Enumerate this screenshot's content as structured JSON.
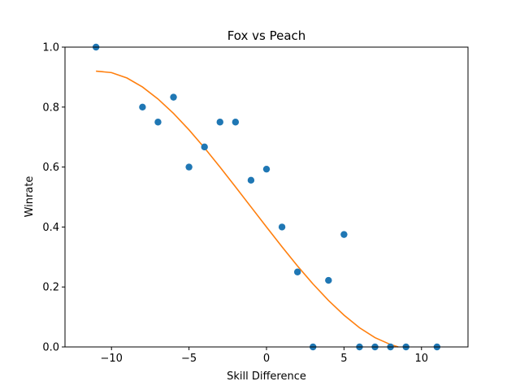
{
  "chart_data": {
    "type": "scatter",
    "title": "Fox vs Peach",
    "xlabel": "Skill Difference",
    "ylabel": "Winrate",
    "xlim": [
      -13,
      13
    ],
    "ylim": [
      0,
      1.0
    ],
    "x_ticks": [
      -10,
      -5,
      0,
      5,
      10
    ],
    "x_tick_labels": [
      "−10",
      "−5",
      "0",
      "5",
      "10"
    ],
    "y_ticks": [
      0.0,
      0.2,
      0.4,
      0.6,
      0.8,
      1.0
    ],
    "y_tick_labels": [
      "0.0",
      "0.2",
      "0.4",
      "0.6",
      "0.8",
      "1.0"
    ],
    "grid": false,
    "series": [
      {
        "type": "scatter",
        "color": "#1f77b4",
        "x": [
          -11,
          -8,
          -7,
          -6,
          -5,
          -4,
          -3,
          -2,
          -1,
          0,
          1,
          2,
          3,
          4,
          5,
          6,
          7,
          8,
          9,
          11
        ],
        "y": [
          1.0,
          0.8,
          0.75,
          0.833,
          0.6,
          0.667,
          0.75,
          0.75,
          0.556,
          0.593,
          0.4,
          0.25,
          0.0,
          0.222,
          0.375,
          0.0,
          0.0,
          0.0,
          0.0,
          0.0
        ]
      },
      {
        "type": "line",
        "color": "#ff7f0e",
        "x": [
          -11,
          -10,
          -9,
          -8,
          -7,
          -6,
          -5,
          -4,
          -3,
          -2,
          -1,
          0,
          1,
          2,
          3,
          4,
          5,
          6,
          7,
          8,
          8.5
        ],
        "y": [
          0.92,
          0.915,
          0.897,
          0.867,
          0.827,
          0.779,
          0.724,
          0.664,
          0.6,
          0.534,
          0.467,
          0.4,
          0.334,
          0.27,
          0.21,
          0.155,
          0.106,
          0.064,
          0.031,
          0.008,
          0.0
        ]
      }
    ]
  }
}
